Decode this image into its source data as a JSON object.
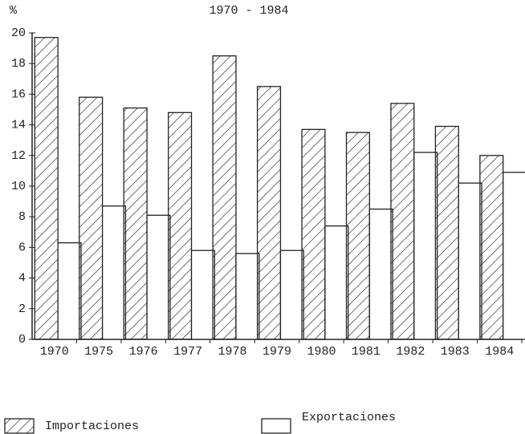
{
  "chart_data": {
    "type": "bar",
    "title": "1970 - 1984",
    "y_label": "%",
    "categories": [
      "1970",
      "1975",
      "1976",
      "1977",
      "1978",
      "1979",
      "1980",
      "1981",
      "1982",
      "1983",
      "1984"
    ],
    "series": [
      {
        "name": "Importaciones",
        "color": "#222222",
        "values": [
          19.7,
          15.8,
          15.1,
          14.8,
          18.5,
          16.5,
          13.7,
          13.5,
          15.4,
          13.9,
          12.0
        ]
      },
      {
        "name": "Exportaciones",
        "color": "#ffffff",
        "values": [
          6.3,
          8.7,
          8.1,
          5.8,
          5.6,
          5.8,
          7.4,
          8.5,
          12.2,
          10.2,
          10.9
        ]
      }
    ],
    "ylim": [
      0,
      20
    ],
    "yticks": [
      0,
      2,
      4,
      6,
      8,
      10,
      12,
      14,
      16,
      18,
      20
    ],
    "legend": "bottom"
  }
}
